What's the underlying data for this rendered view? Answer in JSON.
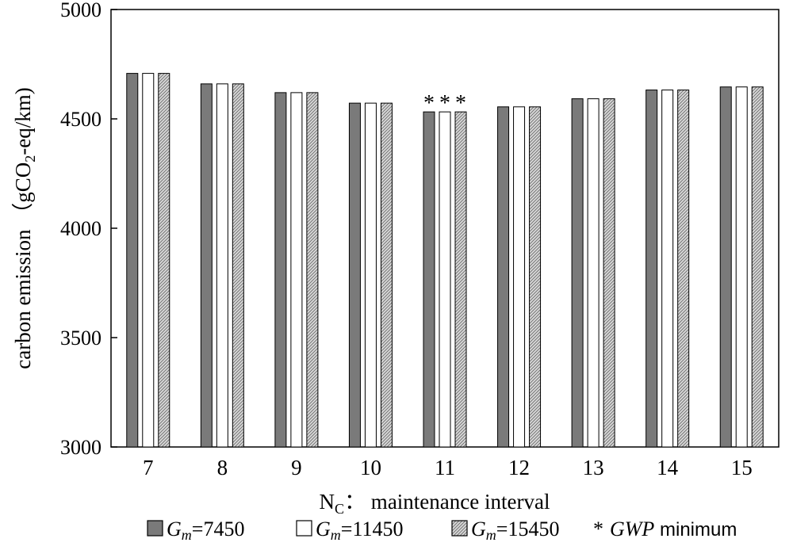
{
  "chart_data": {
    "type": "bar",
    "title": "",
    "xlabel": "N",
    "xlabel_sub": "C",
    "xlabel_rest": "：  maintenance interval",
    "ylabel": "carbon emission （gCO",
    "ylabel_sub": "2",
    "ylabel_rest": "-eq/km)",
    "categories": [
      "7",
      "8",
      "9",
      "10",
      "11",
      "12",
      "13",
      "14",
      "15"
    ],
    "ylim": [
      3000,
      5000
    ],
    "yticks": [
      3000,
      3500,
      4000,
      4500,
      5000
    ],
    "series": [
      {
        "name": "Gm=7450",
        "sym": "G",
        "sub": "m",
        "eq": "=7450",
        "fill": "#7a7a7a",
        "pattern": "none",
        "values": [
          4708,
          4660,
          4620,
          4572,
          4532,
          4555,
          4592,
          4632,
          4646
        ]
      },
      {
        "name": "Gm=11450",
        "sym": "G",
        "sub": "m",
        "eq": "=11450",
        "fill": "#ffffff",
        "pattern": "none",
        "values": [
          4708,
          4660,
          4620,
          4572,
          4532,
          4555,
          4592,
          4632,
          4646
        ]
      },
      {
        "name": "Gm=15450",
        "sym": "G",
        "sub": "m",
        "eq": "=15450",
        "fill": "#d9d9d9",
        "pattern": "hatch",
        "values": [
          4708,
          4660,
          4620,
          4572,
          4532,
          4555,
          4592,
          4632,
          4646
        ]
      }
    ],
    "marker": {
      "symbol": "*",
      "label_italic": "GWP",
      "label_rest": " minimum",
      "category": "11"
    },
    "legend_position": "bottom",
    "grid": false
  }
}
